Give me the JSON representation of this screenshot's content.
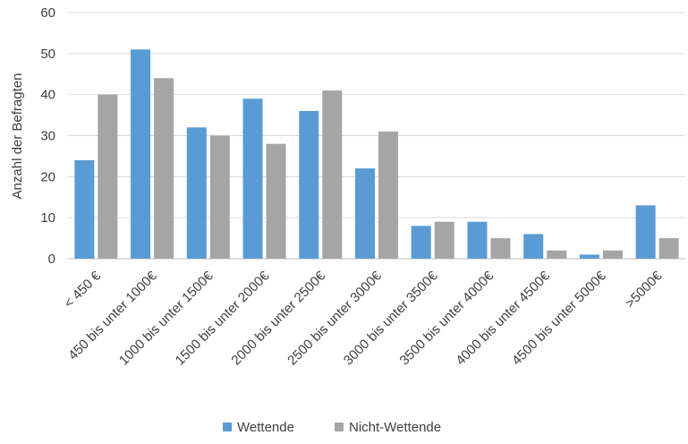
{
  "chart_data": {
    "type": "bar",
    "title": "",
    "xlabel": "",
    "ylabel": "Anzahl der Befragten",
    "ylim": [
      0,
      60
    ],
    "yticks": [
      0,
      10,
      20,
      30,
      40,
      50,
      60
    ],
    "grid": true,
    "legend_position": "bottom",
    "categories": [
      "< 450 €",
      "450 bis unter 1000€",
      "1000 bis unter 1500€",
      "1500 bis unter 2000€",
      "2000 bis unter 2500€",
      "2500 bis unter 3000€",
      "3000 bis unter 3500€",
      "3500 bis unter 4000€",
      "4000 bis unter 4500€",
      "4500 bis unter 5000€",
      ">5000€"
    ],
    "series": [
      {
        "name": "Wettende",
        "color": "#5B9BD5",
        "values": [
          24,
          51,
          32,
          39,
          36,
          22,
          8,
          9,
          6,
          1,
          13
        ]
      },
      {
        "name": "Nicht-Wettende",
        "color": "#A5A5A5",
        "values": [
          40,
          44,
          30,
          28,
          41,
          31,
          9,
          5,
          2,
          2,
          5
        ]
      }
    ]
  }
}
